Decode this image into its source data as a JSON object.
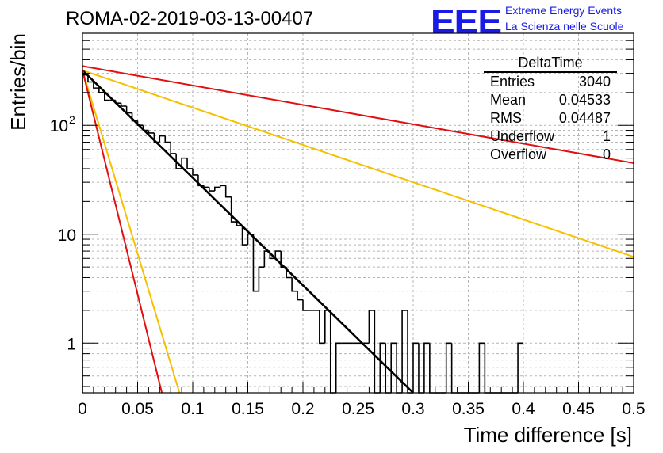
{
  "header": {
    "title": "ROMA-02-2019-03-13-00407",
    "logo": "EEE",
    "logo_line1": "Extreme Energy Events",
    "logo_line2": "La Scienza nelle Scuole"
  },
  "stats_box": {
    "name": "DeltaTime",
    "rows": [
      {
        "label": "Entries",
        "value": "3040"
      },
      {
        "label": "Mean",
        "value": "0.04533"
      },
      {
        "label": "RMS",
        "value": "0.04487"
      },
      {
        "label": "Underflow",
        "value": "1"
      },
      {
        "label": "Overflow",
        "value": "0"
      }
    ]
  },
  "colors": {
    "histogram": "#000000",
    "fit": "#000000",
    "red": "#e01010",
    "orange": "#f5c000",
    "grid": "#b4b4b4"
  },
  "chart_data": {
    "type": "histogram",
    "xlabel": "Time difference [s]",
    "ylabel": "Entries/bin",
    "xlim": [
      0,
      0.5
    ],
    "ylim": [
      0.35,
      700
    ],
    "yscale": "log",
    "grid": true,
    "xticks": [
      0,
      0.05,
      0.1,
      0.15,
      0.2,
      0.25,
      0.3,
      0.35,
      0.4,
      0.45,
      0.5
    ],
    "xtick_labels": [
      "0",
      "0.05",
      "0.1",
      "0.15",
      "0.2",
      "0.25",
      "0.3",
      "0.35",
      "0.4",
      "0.45",
      "0.5"
    ],
    "yticks": [
      1,
      10,
      100
    ],
    "ytick_labels": [
      "1",
      "10",
      "10²"
    ],
    "bin_width": 0.005,
    "bin_values": [
      290,
      250,
      220,
      200,
      170,
      170,
      160,
      150,
      130,
      110,
      100,
      90,
      85,
      70,
      80,
      70,
      55,
      40,
      50,
      40,
      35,
      28,
      27,
      25,
      27,
      28,
      22,
      13,
      12,
      8,
      10,
      3,
      5,
      7,
      6,
      7,
      5,
      4,
      3,
      2.5,
      2,
      2,
      2,
      1,
      2,
      0,
      1,
      1,
      1,
      1,
      1,
      1,
      2,
      0,
      1,
      0,
      1,
      0,
      2,
      0,
      1,
      0,
      1,
      0,
      0,
      0,
      1,
      0,
      0,
      0,
      0,
      0,
      1,
      0,
      0,
      0,
      0,
      0,
      0,
      1
    ],
    "curves": [
      {
        "color": "red",
        "x": [
          0,
          0.5
        ],
        "y": [
          350,
          45
        ]
      },
      {
        "color": "orange",
        "x": [
          0,
          0.5
        ],
        "y": [
          320,
          6.2
        ]
      },
      {
        "color": "fit",
        "x": [
          0,
          0.3
        ],
        "y": [
          320,
          0.35
        ]
      },
      {
        "color": "orange",
        "x": [
          0,
          0.088
        ],
        "y": [
          320,
          0.35
        ]
      },
      {
        "color": "red",
        "x": [
          0,
          0.072
        ],
        "y": [
          320,
          0.35
        ]
      }
    ]
  }
}
